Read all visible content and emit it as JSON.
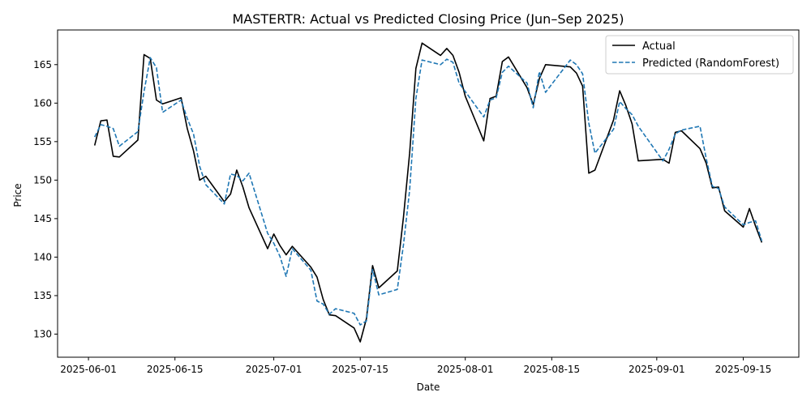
{
  "chart_data": {
    "type": "line",
    "title": "MASTERTR: Actual vs Predicted Closing Price (Jun–Sep 2025)",
    "xlabel": "Date",
    "ylabel": "Price",
    "x_range": [
      "2025-05-27",
      "2025-09-24"
    ],
    "ylim": [
      127.0,
      169.5
    ],
    "x_ticks": [
      "2025-06-01",
      "2025-06-15",
      "2025-07-01",
      "2025-07-15",
      "2025-08-01",
      "2025-08-15",
      "2025-09-01",
      "2025-09-15"
    ],
    "y_ticks": [
      130,
      135,
      140,
      145,
      150,
      155,
      160,
      165
    ],
    "grid": false,
    "legend_position": "top-right",
    "series": [
      {
        "name": "Actual",
        "color": "#000000",
        "style": "solid",
        "points": [
          [
            "2025-06-02",
            154.5
          ],
          [
            "2025-06-03",
            157.7
          ],
          [
            "2025-06-04",
            157.8
          ],
          [
            "2025-06-05",
            153.1
          ],
          [
            "2025-06-06",
            153.0
          ],
          [
            "2025-06-09",
            155.2
          ],
          [
            "2025-06-10",
            166.3
          ],
          [
            "2025-06-11",
            165.8
          ],
          [
            "2025-06-12",
            160.4
          ],
          [
            "2025-06-13",
            159.9
          ],
          [
            "2025-06-16",
            160.7
          ],
          [
            "2025-06-17",
            156.7
          ],
          [
            "2025-06-18",
            153.8
          ],
          [
            "2025-06-19",
            150.0
          ],
          [
            "2025-06-20",
            150.5
          ],
          [
            "2025-06-23",
            147.2
          ],
          [
            "2025-06-24",
            148.2
          ],
          [
            "2025-06-25",
            151.3
          ],
          [
            "2025-06-26",
            149.1
          ],
          [
            "2025-06-27",
            146.4
          ],
          [
            "2025-06-30",
            141.1
          ],
          [
            "2025-07-01",
            143.0
          ],
          [
            "2025-07-02",
            141.5
          ],
          [
            "2025-07-03",
            140.3
          ],
          [
            "2025-07-04",
            141.4
          ],
          [
            "2025-07-07",
            138.7
          ],
          [
            "2025-07-08",
            137.4
          ],
          [
            "2025-07-09",
            134.5
          ],
          [
            "2025-07-10",
            132.5
          ],
          [
            "2025-07-11",
            132.4
          ],
          [
            "2025-07-14",
            130.8
          ],
          [
            "2025-07-15",
            129.0
          ],
          [
            "2025-07-16",
            132.0
          ],
          [
            "2025-07-17",
            138.9
          ],
          [
            "2025-07-18",
            136.0
          ],
          [
            "2025-07-21",
            138.2
          ],
          [
            "2025-07-22",
            145.2
          ],
          [
            "2025-07-23",
            153.5
          ],
          [
            "2025-07-24",
            164.5
          ],
          [
            "2025-07-25",
            167.8
          ],
          [
            "2025-07-28",
            166.2
          ],
          [
            "2025-07-29",
            167.1
          ],
          [
            "2025-07-30",
            166.2
          ],
          [
            "2025-07-31",
            164.0
          ],
          [
            "2025-08-01",
            160.9
          ],
          [
            "2025-08-04",
            155.1
          ],
          [
            "2025-08-05",
            160.6
          ],
          [
            "2025-08-06",
            160.9
          ],
          [
            "2025-08-07",
            165.4
          ],
          [
            "2025-08-08",
            166.0
          ],
          [
            "2025-08-11",
            162.0
          ],
          [
            "2025-08-12",
            159.8
          ],
          [
            "2025-08-13",
            163.2
          ],
          [
            "2025-08-14",
            165.0
          ],
          [
            "2025-08-18",
            164.7
          ],
          [
            "2025-08-19",
            163.9
          ],
          [
            "2025-08-20",
            162.2
          ],
          [
            "2025-08-21",
            150.9
          ],
          [
            "2025-08-22",
            151.3
          ],
          [
            "2025-08-25",
            157.8
          ],
          [
            "2025-08-26",
            161.6
          ],
          [
            "2025-08-27",
            159.7
          ],
          [
            "2025-08-28",
            157.3
          ],
          [
            "2025-08-29",
            152.5
          ],
          [
            "2025-09-02",
            152.7
          ],
          [
            "2025-09-03",
            152.2
          ],
          [
            "2025-09-04",
            156.2
          ],
          [
            "2025-09-05",
            156.4
          ],
          [
            "2025-09-08",
            154.1
          ],
          [
            "2025-09-09",
            152.2
          ],
          [
            "2025-09-10",
            149.0
          ],
          [
            "2025-09-11",
            149.1
          ],
          [
            "2025-09-12",
            146.0
          ],
          [
            "2025-09-15",
            143.9
          ],
          [
            "2025-09-16",
            146.3
          ],
          [
            "2025-09-17",
            144.0
          ],
          [
            "2025-09-18",
            141.9
          ]
        ]
      },
      {
        "name": "Predicted (RandomForest)",
        "color": "#1f77b4",
        "style": "dashed",
        "points": [
          [
            "2025-06-02",
            155.6
          ],
          [
            "2025-06-03",
            157.2
          ],
          [
            "2025-06-04",
            157.0
          ],
          [
            "2025-06-05",
            156.7
          ],
          [
            "2025-06-06",
            154.4
          ],
          [
            "2025-06-09",
            156.3
          ],
          [
            "2025-06-10",
            161.5
          ],
          [
            "2025-06-11",
            165.9
          ],
          [
            "2025-06-12",
            164.6
          ],
          [
            "2025-06-13",
            158.8
          ],
          [
            "2025-06-16",
            160.4
          ],
          [
            "2025-06-17",
            158.0
          ],
          [
            "2025-06-18",
            156.0
          ],
          [
            "2025-06-19",
            151.8
          ],
          [
            "2025-06-20",
            149.4
          ],
          [
            "2025-06-23",
            146.9
          ],
          [
            "2025-06-24",
            150.8
          ],
          [
            "2025-06-25",
            150.6
          ],
          [
            "2025-06-26",
            149.9
          ],
          [
            "2025-06-27",
            150.9
          ],
          [
            "2025-06-30",
            143.1
          ],
          [
            "2025-07-01",
            141.8
          ],
          [
            "2025-07-02",
            140.1
          ],
          [
            "2025-07-03",
            137.5
          ],
          [
            "2025-07-04",
            141.1
          ],
          [
            "2025-07-07",
            138.3
          ],
          [
            "2025-07-08",
            134.3
          ],
          [
            "2025-07-09",
            133.9
          ],
          [
            "2025-07-10",
            132.6
          ],
          [
            "2025-07-11",
            133.3
          ],
          [
            "2025-07-14",
            132.7
          ],
          [
            "2025-07-15",
            131.2
          ],
          [
            "2025-07-16",
            131.7
          ],
          [
            "2025-07-17",
            138.4
          ],
          [
            "2025-07-18",
            135.1
          ],
          [
            "2025-07-21",
            135.8
          ],
          [
            "2025-07-22",
            141.6
          ],
          [
            "2025-07-23",
            148.7
          ],
          [
            "2025-07-24",
            160.6
          ],
          [
            "2025-07-25",
            165.6
          ],
          [
            "2025-07-28",
            165.0
          ],
          [
            "2025-07-29",
            165.7
          ],
          [
            "2025-07-30",
            165.3
          ],
          [
            "2025-07-31",
            162.6
          ],
          [
            "2025-08-01",
            161.5
          ],
          [
            "2025-08-04",
            158.2
          ],
          [
            "2025-08-05",
            160.4
          ],
          [
            "2025-08-06",
            160.7
          ],
          [
            "2025-08-07",
            164.0
          ],
          [
            "2025-08-08",
            164.8
          ],
          [
            "2025-08-11",
            162.6
          ],
          [
            "2025-08-12",
            159.4
          ],
          [
            "2025-08-13",
            164.1
          ],
          [
            "2025-08-14",
            161.4
          ],
          [
            "2025-08-18",
            165.6
          ],
          [
            "2025-08-19",
            165.0
          ],
          [
            "2025-08-20",
            163.8
          ],
          [
            "2025-08-21",
            157.4
          ],
          [
            "2025-08-22",
            153.5
          ],
          [
            "2025-08-25",
            156.6
          ],
          [
            "2025-08-26",
            160.2
          ],
          [
            "2025-08-27",
            159.3
          ],
          [
            "2025-08-28",
            158.5
          ],
          [
            "2025-08-29",
            157.0
          ],
          [
            "2025-09-02",
            152.5
          ],
          [
            "2025-09-03",
            154.0
          ],
          [
            "2025-09-04",
            156.0
          ],
          [
            "2025-09-05",
            156.5
          ],
          [
            "2025-09-08",
            157.0
          ],
          [
            "2025-09-09",
            152.8
          ],
          [
            "2025-09-10",
            149.2
          ],
          [
            "2025-09-11",
            148.9
          ],
          [
            "2025-09-12",
            146.5
          ],
          [
            "2025-09-15",
            144.2
          ],
          [
            "2025-09-16",
            144.5
          ],
          [
            "2025-09-17",
            144.7
          ],
          [
            "2025-09-18",
            142.1
          ]
        ]
      }
    ]
  }
}
